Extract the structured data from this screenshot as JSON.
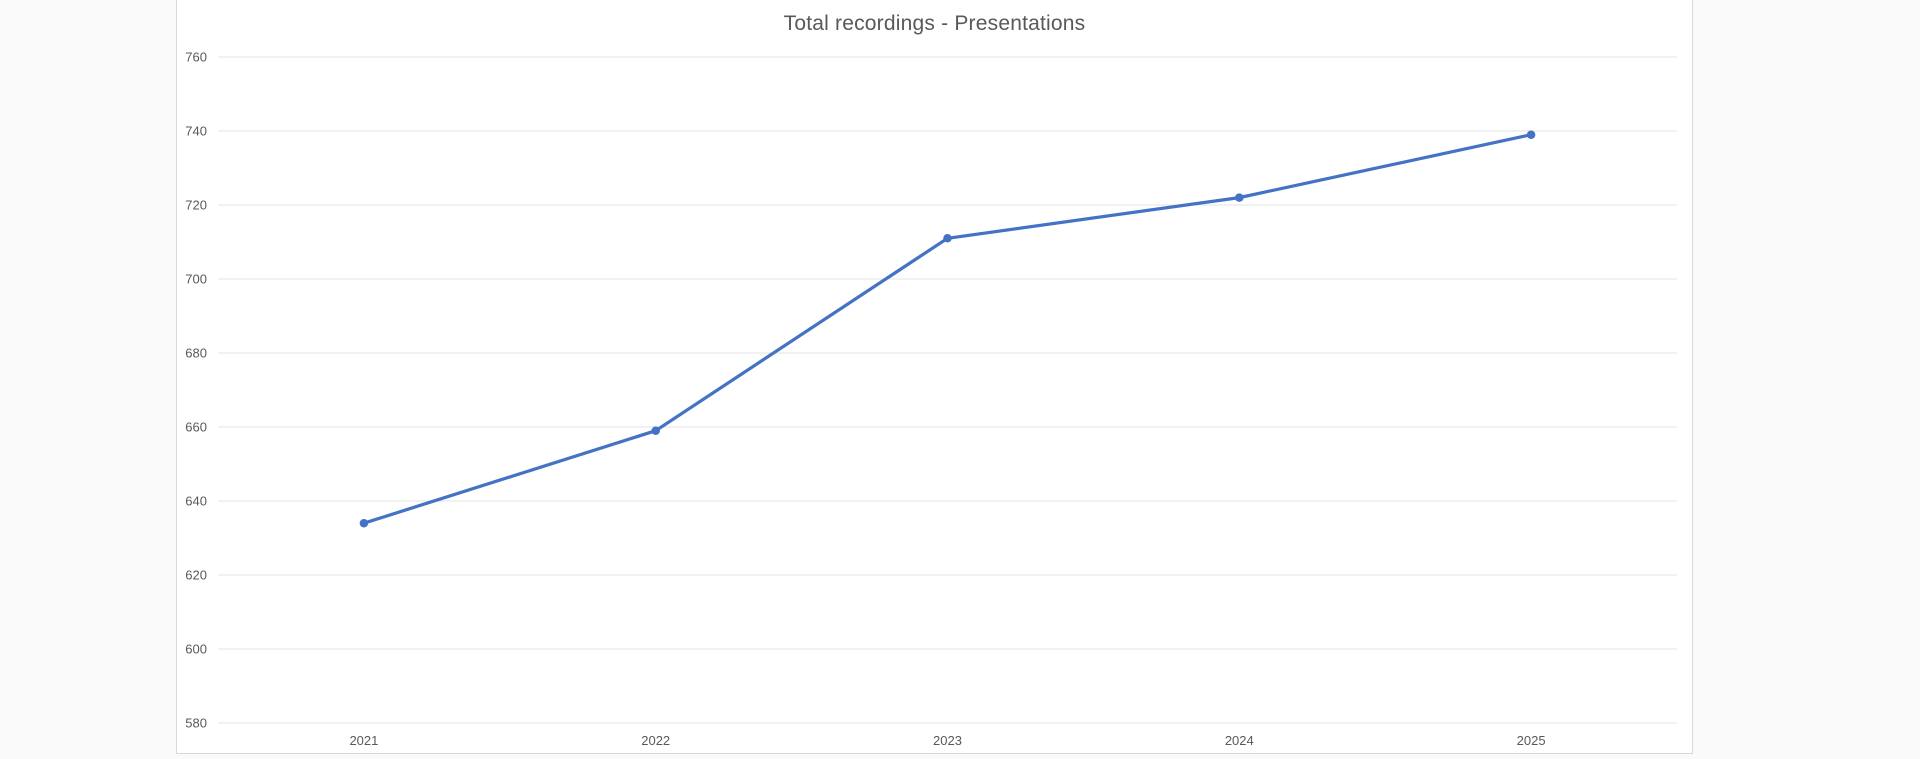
{
  "chart": {
    "title": "Total recordings - Presentations",
    "colors": {
      "line": "#4472C4",
      "marker": "#4472C4",
      "gridline": "#E3E3E3",
      "axis_text": "#595959",
      "title_text": "#595959",
      "panel_border": "#D9D9D9",
      "panel_bg": "#FFFFFF",
      "page_bg": "#FAFAFA"
    }
  },
  "chart_data": {
    "type": "line",
    "title": "Total recordings - Presentations",
    "categories": [
      "2021",
      "2022",
      "2023",
      "2024",
      "2025"
    ],
    "series": [
      {
        "name": "Total recordings",
        "values": [
          634,
          659,
          711,
          722,
          739
        ]
      }
    ],
    "xlabel": "",
    "ylabel": "",
    "ylim": [
      580,
      760
    ],
    "ytick_step": 20,
    "grid": true,
    "legend": "none",
    "markers": true
  }
}
